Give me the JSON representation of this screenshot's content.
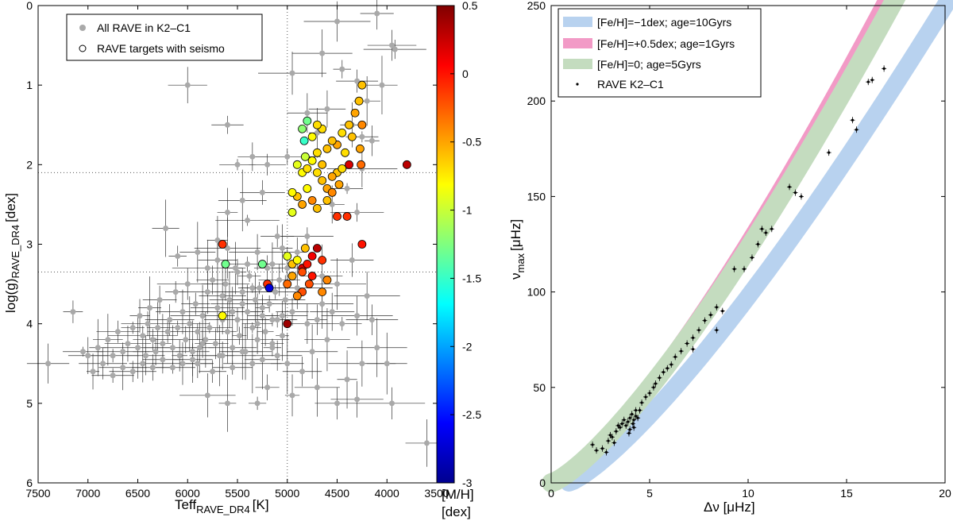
{
  "chart_data": [
    {
      "type": "scatter",
      "title": "",
      "xlabel": "Teff",
      "xlabel_sub": "RAVE_DR4",
      "xlabel_unit": "[K]",
      "ylabel": "log(g)",
      "ylabel_sub": "RAVE_DR4",
      "ylabel_unit": "[dex]",
      "xlim": [
        7500,
        3500
      ],
      "ylim": [
        0,
        6
      ],
      "y_inverted": true,
      "xticks": [
        "7500",
        "7000",
        "6500",
        "6000",
        "5500",
        "5000",
        "4500",
        "4000",
        "3500"
      ],
      "yticks": [
        "0",
        "1",
        "2",
        "3",
        "4",
        "5",
        "6"
      ],
      "reference_lines": {
        "teff": 5000,
        "logg": [
          2.1,
          3.35
        ]
      },
      "legend": [
        "All RAVE in K2–C1",
        "RAVE targets with seismo"
      ],
      "legend_position": "top-left",
      "colorbar": {
        "label_line1": "[M/H]",
        "label_line2": "[dex]",
        "range": [
          -3,
          0.5
        ],
        "ticks": [
          "0.5",
          "0",
          "-0.5",
          "-1",
          "-1.5",
          "-2",
          "-2.5",
          "-3"
        ]
      },
      "all_rave": [
        [
          7400,
          4.5
        ],
        [
          7150,
          3.85
        ],
        [
          7000,
          4.4
        ],
        [
          6900,
          4.3
        ],
        [
          6850,
          4.5
        ],
        [
          6800,
          4.2
        ],
        [
          6750,
          4.4
        ],
        [
          6700,
          4.1
        ],
        [
          6650,
          4.35
        ],
        [
          6600,
          4.25
        ],
        [
          6550,
          4.05
        ],
        [
          6500,
          4.3
        ],
        [
          6480,
          3.9
        ],
        [
          6450,
          4.15
        ],
        [
          6420,
          4.4
        ],
        [
          6400,
          4.0
        ],
        [
          6380,
          3.8
        ],
        [
          6350,
          4.2
        ],
        [
          6320,
          4.35
        ],
        [
          6300,
          4.05
        ],
        [
          6280,
          3.7
        ],
        [
          6250,
          4.25
        ],
        [
          6220,
          2.8
        ],
        [
          6200,
          4.1
        ],
        [
          6180,
          3.95
        ],
        [
          6150,
          4.3
        ],
        [
          6120,
          3.6
        ],
        [
          6100,
          4.05
        ],
        [
          6080,
          4.4
        ],
        [
          6050,
          3.85
        ],
        [
          6020,
          4.2
        ],
        [
          6000,
          1.0
        ],
        [
          5980,
          4.0
        ],
        [
          5950,
          4.45
        ],
        [
          5920,
          3.75
        ],
        [
          5900,
          4.1
        ],
        [
          5880,
          4.3
        ],
        [
          5850,
          3.9
        ],
        [
          5820,
          4.2
        ],
        [
          5800,
          3.6
        ],
        [
          5780,
          4.05
        ],
        [
          5750,
          3.45
        ],
        [
          5720,
          4.25
        ],
        [
          5700,
          3.8
        ],
        [
          5680,
          4.4
        ],
        [
          5650,
          3.95
        ],
        [
          5620,
          3.5
        ],
        [
          5600,
          4.1
        ],
        [
          5580,
          3.7
        ],
        [
          5550,
          4.3
        ],
        [
          5520,
          3.3
        ],
        [
          5500,
          3.95
        ],
        [
          5480,
          4.15
        ],
        [
          5450,
          3.6
        ],
        [
          5420,
          4.35
        ],
        [
          5400,
          3.85
        ],
        [
          5380,
          3.4
        ],
        [
          5350,
          4.05
        ],
        [
          5320,
          3.7
        ],
        [
          5300,
          4.2
        ],
        [
          5280,
          3.55
        ],
        [
          5250,
          3.9
        ],
        [
          5220,
          4.1
        ],
        [
          5200,
          3.3
        ],
        [
          5180,
          3.75
        ],
        [
          5150,
          4.25
        ],
        [
          5120,
          3.6
        ],
        [
          5100,
          3.95
        ],
        [
          5080,
          3.45
        ],
        [
          5050,
          4.15
        ],
        [
          5020,
          3.7
        ],
        [
          5000,
          4.5
        ],
        [
          5800,
          4.9
        ],
        [
          5900,
          4.5
        ],
        [
          5600,
          5.0
        ],
        [
          5300,
          5.0
        ],
        [
          5200,
          4.8
        ],
        [
          4950,
          4.9
        ],
        [
          4850,
          4.6
        ],
        [
          4700,
          4.8
        ],
        [
          4500,
          5.0
        ],
        [
          4400,
          4.7
        ],
        [
          4300,
          4.95
        ],
        [
          4250,
          4.5
        ],
        [
          4000,
          4.5
        ],
        [
          3950,
          5.0
        ],
        [
          3600,
          5.5
        ],
        [
          4100,
          4.3
        ],
        [
          4600,
          4.2
        ],
        [
          4750,
          4.35
        ],
        [
          4450,
          4.0
        ],
        [
          4300,
          3.9
        ],
        [
          4150,
          3.95
        ],
        [
          4500,
          3.5
        ],
        [
          4350,
          3.2
        ],
        [
          4200,
          3.65
        ],
        [
          4900,
          3.1
        ],
        [
          4650,
          3.4
        ],
        [
          4800,
          2.9
        ],
        [
          4300,
          2.6
        ],
        [
          4550,
          2.5
        ],
        [
          4400,
          2.3
        ],
        [
          4250,
          2.05
        ],
        [
          4150,
          1.7
        ],
        [
          4350,
          1.5
        ],
        [
          4200,
          1.2
        ],
        [
          4050,
          1.0
        ],
        [
          3950,
          0.5
        ],
        [
          3920,
          0.55
        ],
        [
          4100,
          0.1
        ],
        [
          4500,
          0.2
        ],
        [
          4450,
          0.8
        ],
        [
          4300,
          0.95
        ],
        [
          4600,
          1.3
        ],
        [
          4250,
          1.65
        ],
        [
          4700,
          1.6
        ],
        [
          4800,
          1.35
        ],
        [
          5000,
          1.9
        ],
        [
          5200,
          2.0
        ],
        [
          5500,
          2.0
        ],
        [
          5600,
          2.6
        ],
        [
          5400,
          2.7
        ],
        [
          5250,
          2.35
        ],
        [
          5100,
          2.9
        ],
        [
          5300,
          3.1
        ],
        [
          5150,
          3.25
        ],
        [
          5600,
          3.05
        ],
        [
          5900,
          3.1
        ],
        [
          6000,
          3.5
        ],
        [
          6100,
          3.15
        ],
        [
          5700,
          2.95
        ],
        [
          5450,
          2.45
        ],
        [
          5350,
          1.9
        ],
        [
          5600,
          1.5
        ],
        [
          4950,
          0.85
        ],
        [
          4650,
          0.6
        ],
        [
          5000,
          3.3
        ],
        [
          5050,
          3.05
        ],
        [
          4900,
          3.55
        ],
        [
          4950,
          3.85
        ],
        [
          4800,
          4.0
        ],
        [
          4700,
          3.95
        ],
        [
          4650,
          3.75
        ],
        [
          4550,
          3.85
        ],
        [
          5100,
          4.4
        ],
        [
          5150,
          4.3
        ],
        [
          5250,
          4.45
        ],
        [
          5350,
          4.5
        ],
        [
          5450,
          4.35
        ],
        [
          5550,
          4.55
        ],
        [
          5650,
          4.4
        ],
        [
          5750,
          4.6
        ],
        [
          5850,
          4.25
        ],
        [
          5950,
          4.35
        ],
        [
          6050,
          4.5
        ],
        [
          6150,
          4.55
        ],
        [
          6250,
          4.45
        ],
        [
          6350,
          4.55
        ],
        [
          6450,
          4.5
        ],
        [
          6550,
          4.6
        ],
        [
          6650,
          4.55
        ],
        [
          6750,
          4.65
        ],
        [
          6950,
          4.6
        ],
        [
          7050,
          4.35
        ],
        [
          5400,
          3.25
        ],
        [
          5500,
          3.35
        ],
        [
          5700,
          3.2
        ],
        [
          5800,
          3.3
        ],
        [
          5350,
          3.55
        ],
        [
          5450,
          3.75
        ],
        [
          5550,
          3.85
        ],
        [
          5650,
          3.65
        ],
        [
          5250,
          3.8
        ],
        [
          5150,
          3.95
        ],
        [
          5050,
          3.9
        ],
        [
          5300,
          4.0
        ]
      ],
      "seismo": [
        [
          4250,
          1.0
        ],
        [
          4280,
          1.2
        ],
        [
          4320,
          1.35
        ],
        [
          4380,
          1.5
        ],
        [
          4450,
          1.6
        ],
        [
          4500,
          1.75
        ],
        [
          4550,
          1.7
        ],
        [
          4600,
          1.8
        ],
        [
          4650,
          1.55
        ],
        [
          4700,
          1.5
        ],
        [
          4750,
          1.65
        ],
        [
          4800,
          1.45
        ],
        [
          4850,
          1.55
        ],
        [
          4830,
          1.7
        ],
        [
          4820,
          1.9
        ],
        [
          4750,
          1.95
        ],
        [
          4700,
          2.1
        ],
        [
          4650,
          2.2
        ],
        [
          4600,
          2.3
        ],
        [
          4550,
          2.35
        ],
        [
          4500,
          2.1
        ],
        [
          4450,
          2.05
        ],
        [
          4550,
          2.15
        ],
        [
          4800,
          2.3
        ],
        [
          4900,
          2.4
        ],
        [
          4950,
          2.6
        ],
        [
          4850,
          2.5
        ],
        [
          4750,
          2.45
        ],
        [
          4700,
          2.55
        ],
        [
          4850,
          2.1
        ],
        [
          4900,
          2.0
        ],
        [
          4800,
          2.05
        ],
        [
          4950,
          2.35
        ],
        [
          4700,
          1.85
        ],
        [
          4650,
          2.0
        ],
        [
          4250,
          1.5
        ],
        [
          4270,
          1.8
        ],
        [
          4260,
          2.0
        ],
        [
          4380,
          2.0
        ],
        [
          3800,
          2.0
        ],
        [
          4400,
          2.65
        ],
        [
          4500,
          2.65
        ],
        [
          4250,
          3.0
        ],
        [
          5650,
          3.0
        ],
        [
          5620,
          3.25
        ],
        [
          5250,
          3.25
        ],
        [
          5000,
          3.15
        ],
        [
          4950,
          3.25
        ],
        [
          4900,
          3.2
        ],
        [
          4850,
          3.3
        ],
        [
          4800,
          3.25
        ],
        [
          4750,
          3.15
        ],
        [
          4700,
          3.05
        ],
        [
          4650,
          3.2
        ],
        [
          4600,
          3.45
        ],
        [
          4650,
          3.6
        ],
        [
          4750,
          3.4
        ],
        [
          4850,
          3.35
        ],
        [
          5000,
          3.5
        ],
        [
          5200,
          3.5
        ],
        [
          5180,
          3.55
        ],
        [
          5000,
          4.0
        ],
        [
          5650,
          3.9
        ],
        [
          4850,
          3.6
        ],
        [
          4780,
          3.5
        ],
        [
          4950,
          3.4
        ],
        [
          4900,
          3.65
        ],
        [
          4820,
          3.05
        ],
        [
          4350,
          1.65
        ],
        [
          4420,
          1.85
        ],
        [
          4480,
          2.25
        ],
        [
          4600,
          2.45
        ]
      ],
      "seismo_mh": [
        -0.6,
        -0.6,
        -0.5,
        -0.6,
        -0.7,
        -0.5,
        -0.6,
        -0.6,
        -0.7,
        -0.7,
        -0.8,
        -1.3,
        -1.2,
        -1.5,
        -1.0,
        -0.8,
        -0.7,
        -0.6,
        -0.5,
        -0.4,
        -0.6,
        -0.7,
        -0.5,
        -0.8,
        -0.6,
        -0.9,
        -0.5,
        -0.4,
        -0.6,
        -0.8,
        -0.9,
        -0.7,
        -0.8,
        -0.7,
        -0.6,
        -0.4,
        -0.5,
        -0.3,
        0.2,
        0.3,
        -0.1,
        -0.1,
        0.0,
        -0.1,
        -1.3,
        -1.3,
        -0.9,
        -0.6,
        -0.8,
        0.2,
        0.0,
        0.1,
        0.3,
        -0.1,
        -0.4,
        -0.4,
        0.0,
        -0.2,
        -0.3,
        -0.1,
        -2.7,
        0.4,
        -0.8,
        -0.2,
        -0.2,
        -0.5,
        -0.4,
        -0.6,
        -0.6,
        -0.7,
        -0.5,
        -0.6
      ]
    },
    {
      "type": "scatter",
      "title": "",
      "xlabel": "Δν [μHz]",
      "ylabel": "ν",
      "ylabel_sub": "max",
      "ylabel_unit": "[μHz]",
      "xlim": [
        0,
        20
      ],
      "ylim": [
        0,
        250
      ],
      "xticks": [
        "0",
        "5",
        "10",
        "15",
        "20"
      ],
      "yticks": [
        "0",
        "50",
        "100",
        "150",
        "200",
        "250"
      ],
      "legend": [
        "[Fe/H]=−1dex; age=10Gyrs",
        "[Fe/H]=+0.5dex; age=1Gyrs",
        "[Fe/H]=0; age=5Gyrs",
        "RAVE K2–C1"
      ],
      "legend_position": "top-left",
      "series": [
        {
          "name": "[Fe/H]=−1dex; age=10Gyrs",
          "color": "#b8d2ef",
          "exponent": 1.27,
          "scale": 5.9,
          "offset": 0
        },
        {
          "name": "[Fe/H]=+0.5dex; age=1Gyrs",
          "color": "#f29ac6",
          "exponent": 1.3,
          "scale": 6.4,
          "offset": 0
        },
        {
          "name": "[Fe/H]=0; age=5Gyrs",
          "color": "#c4dcbf",
          "exponent": 1.3,
          "scale": 6.15,
          "offset": 0
        }
      ],
      "points": [
        [
          2.1,
          20
        ],
        [
          2.3,
          17
        ],
        [
          2.6,
          18
        ],
        [
          2.9,
          22
        ],
        [
          3.0,
          25
        ],
        [
          3.1,
          24
        ],
        [
          3.3,
          27
        ],
        [
          3.4,
          30
        ],
        [
          3.5,
          29
        ],
        [
          3.6,
          31
        ],
        [
          3.7,
          33
        ],
        [
          3.8,
          30
        ],
        [
          3.9,
          32
        ],
        [
          4.0,
          34
        ],
        [
          4.0,
          28
        ],
        [
          4.1,
          36
        ],
        [
          4.2,
          33
        ],
        [
          4.2,
          29
        ],
        [
          4.3,
          35
        ],
        [
          4.3,
          38
        ],
        [
          3.2,
          21
        ],
        [
          2.8,
          16
        ],
        [
          4.4,
          34
        ],
        [
          3.95,
          26
        ],
        [
          4.15,
          31
        ],
        [
          4.5,
          38
        ],
        [
          4.6,
          42
        ],
        [
          4.8,
          45
        ],
        [
          5.0,
          47
        ],
        [
          5.2,
          50
        ],
        [
          5.3,
          52
        ],
        [
          5.5,
          55
        ],
        [
          5.7,
          58
        ],
        [
          5.9,
          60
        ],
        [
          6.1,
          62
        ],
        [
          6.3,
          66
        ],
        [
          6.6,
          69
        ],
        [
          6.9,
          73
        ],
        [
          7.2,
          76
        ],
        [
          7.5,
          80
        ],
        [
          7.8,
          85
        ],
        [
          8.1,
          88
        ],
        [
          8.4,
          92
        ],
        [
          8.7,
          90
        ],
        [
          8.4,
          80
        ],
        [
          7.2,
          70
        ],
        [
          9.3,
          112
        ],
        [
          9.8,
          112
        ],
        [
          10.2,
          118
        ],
        [
          10.5,
          125
        ],
        [
          10.7,
          133
        ],
        [
          10.9,
          131
        ],
        [
          11.2,
          133
        ],
        [
          12.1,
          155
        ],
        [
          12.4,
          152
        ],
        [
          12.7,
          150
        ],
        [
          14.1,
          173
        ],
        [
          15.3,
          190
        ],
        [
          15.5,
          185
        ],
        [
          16.1,
          210
        ],
        [
          16.3,
          211
        ],
        [
          16.9,
          217
        ]
      ]
    }
  ]
}
